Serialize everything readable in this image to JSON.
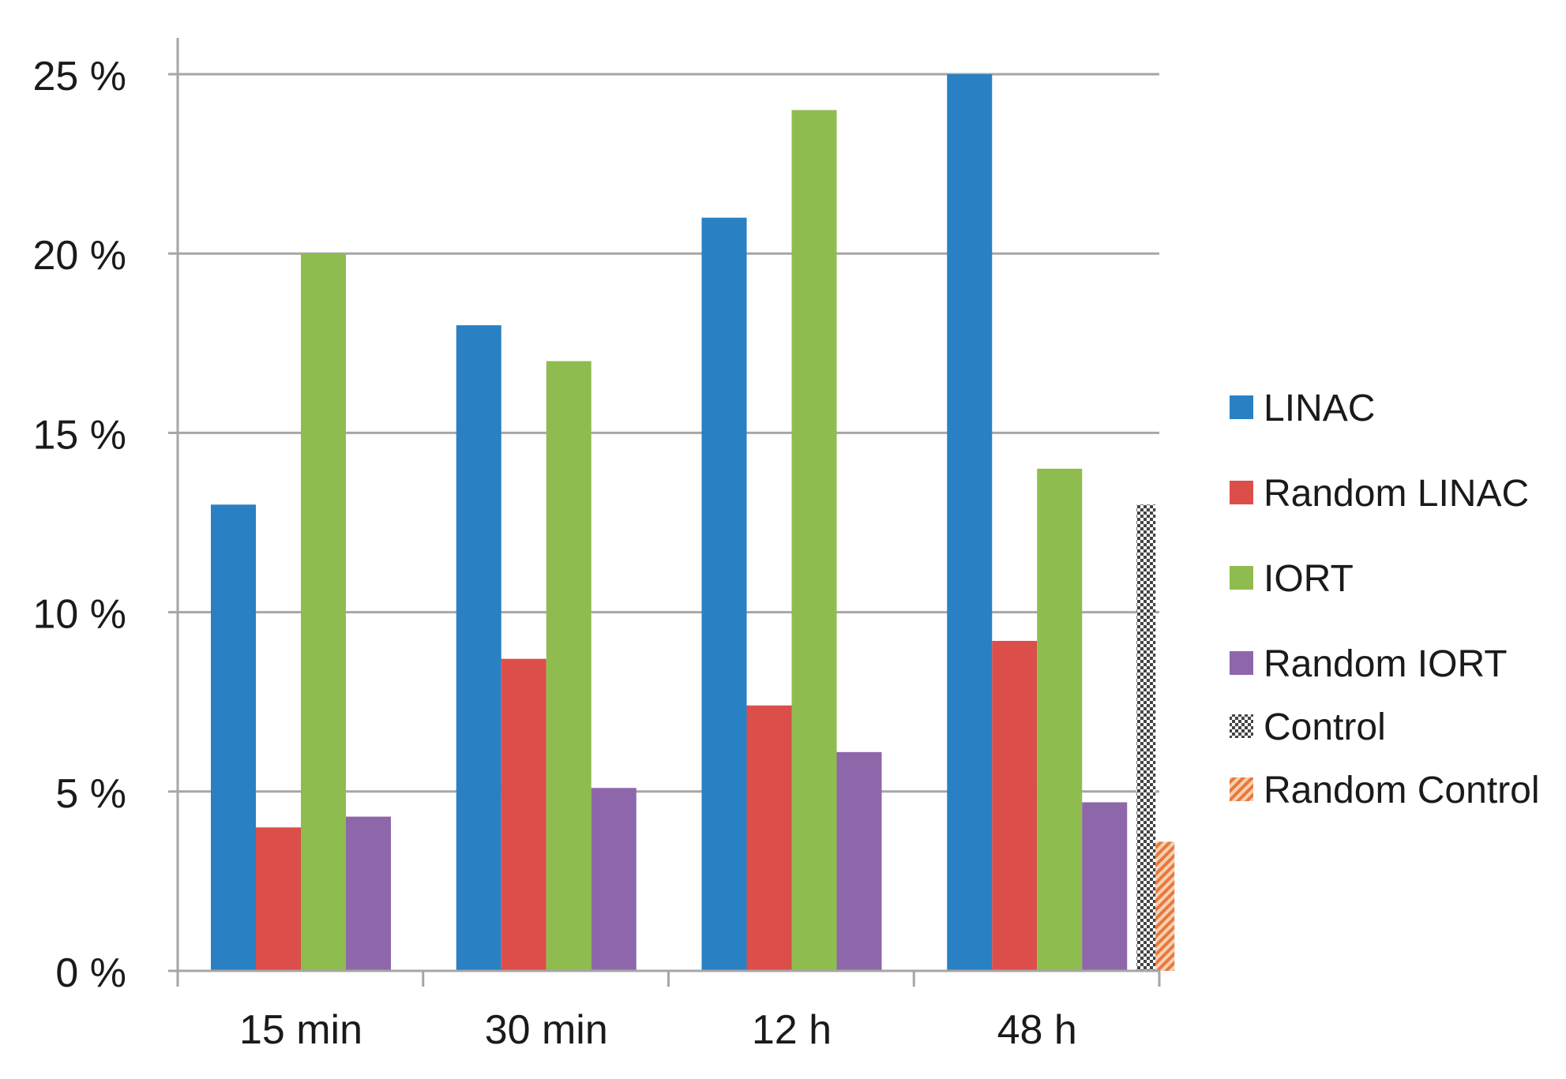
{
  "chart_data": {
    "type": "bar",
    "title": "",
    "xlabel": "",
    "ylabel": "",
    "categories": [
      "15 min",
      "30 min",
      "12 h",
      "48 h"
    ],
    "ylim": [
      0,
      25
    ],
    "yticks": [
      0,
      5,
      10,
      15,
      20,
      25
    ],
    "ytick_labels": [
      "0 %",
      "5 %",
      "10 %",
      "15 %",
      "20 %",
      "25 %"
    ],
    "grid": true,
    "legend_position": "right",
    "series": [
      {
        "name": "LINAC",
        "color": "#2980c3",
        "pattern": "solid",
        "values": [
          13,
          18,
          21,
          25
        ]
      },
      {
        "name": "Random LINAC",
        "color": "#dc4e4a",
        "pattern": "solid",
        "values": [
          4,
          8.7,
          7.4,
          9.2
        ]
      },
      {
        "name": "IORT",
        "color": "#8fbc4f",
        "pattern": "solid",
        "values": [
          20,
          17,
          24,
          14
        ]
      },
      {
        "name": "Random IORT",
        "color": "#8e67ab",
        "pattern": "solid",
        "values": [
          4.3,
          5.1,
          6.1,
          4.7
        ]
      },
      {
        "name": "Control",
        "color": "#444444",
        "pattern": "checker",
        "values": [
          null,
          null,
          null,
          13
        ]
      },
      {
        "name": "Random Control",
        "color": "#e8793a",
        "pattern": "diagonal",
        "values": [
          null,
          null,
          null,
          3.6
        ]
      }
    ]
  }
}
